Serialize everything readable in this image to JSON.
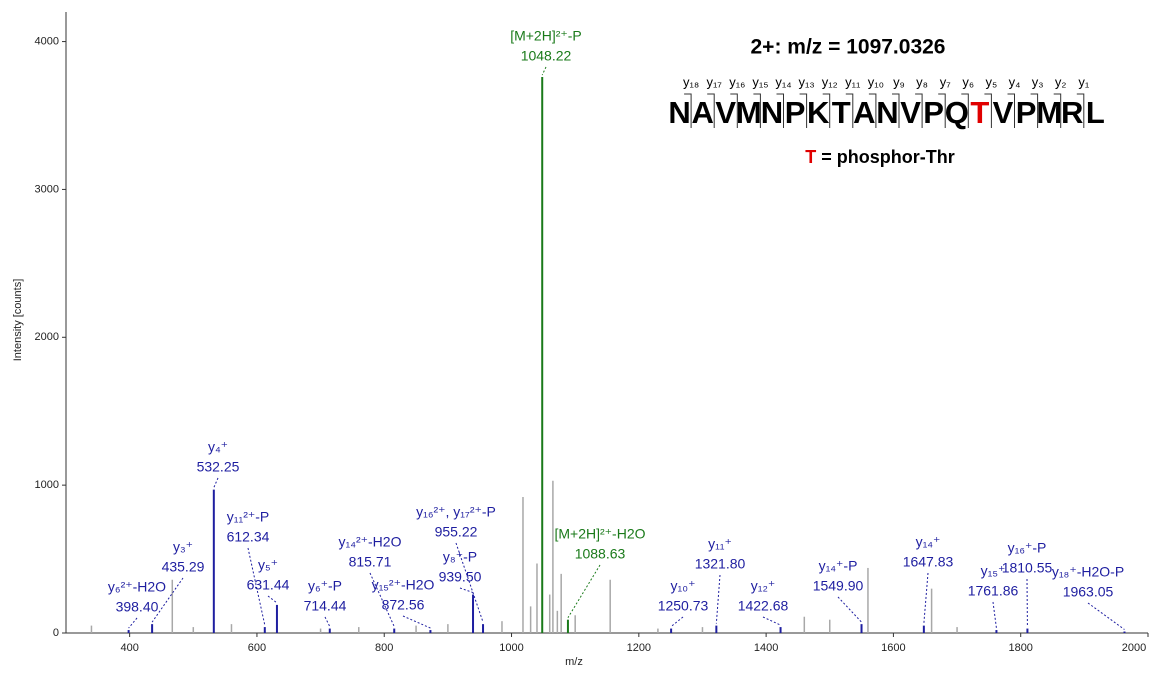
{
  "chart_data": {
    "type": "spectrum",
    "xlabel": "m/z",
    "ylabel": "Intensity [counts]",
    "xlim": [
      300,
      2000
    ],
    "ylim": [
      0,
      4200
    ],
    "xticks": [
      400,
      600,
      800,
      1000,
      1200,
      1400,
      1600,
      1800,
      2000
    ],
    "yticks": [
      0,
      1000,
      2000,
      3000,
      4000
    ],
    "annotation_color": "#1e1ea0",
    "peaks": [
      {
        "annotation": "[M+2H]²⁺-P",
        "x": 1048.22,
        "value": 3760,
        "color": "#1a7a1a"
      },
      {
        "annotation": "y₄⁺",
        "x": 532.25,
        "value": 970,
        "color": "#1e1ea0"
      },
      {
        "annotation": "y₃⁺",
        "x": 435.29,
        "value": 60,
        "color": "#1e1ea0"
      },
      {
        "annotation": "y₆²⁺-H2O",
        "x": 398.4,
        "x_label": "398.40",
        "value": 20,
        "color": "#1e1ea0"
      },
      {
        "annotation": "y₁₁²⁺-P",
        "x": 612.34,
        "value": 40,
        "color": "#1e1ea0"
      },
      {
        "annotation": "y₅⁺",
        "x": 631.44,
        "value": 190,
        "color": "#1e1ea0"
      },
      {
        "annotation": "y₆⁺-P",
        "x": 714.44,
        "value": 30,
        "color": "#1e1ea0"
      },
      {
        "annotation": "y₁₄²⁺-H2O",
        "x": 815.71,
        "value": 30,
        "color": "#1e1ea0"
      },
      {
        "annotation": "y₁₅²⁺-H2O",
        "x": 872.56,
        "value": 20,
        "color": "#1e1ea0"
      },
      {
        "annotation": "y₁₆²⁺, y₁₇²⁺-P",
        "x": 955.22,
        "value": 60,
        "color": "#1e1ea0"
      },
      {
        "annotation": "y₈⁺-P",
        "x": 939.5,
        "x_label": "939.50",
        "value": 260,
        "color": "#1e1ea0"
      },
      {
        "annotation": "[M+2H]²⁺-H2O",
        "x": 1088.63,
        "value": 90,
        "color": "#1a7a1a"
      },
      {
        "annotation": "y₁₀⁺",
        "x": 1250.73,
        "value": 30,
        "color": "#1e1ea0"
      },
      {
        "annotation": "y₁₁⁺",
        "x": 1321.8,
        "x_label": "1321.80",
        "value": 50,
        "color": "#1e1ea0"
      },
      {
        "annotation": "y₁₂⁺",
        "x": 1422.68,
        "value": 40,
        "color": "#1e1ea0"
      },
      {
        "annotation": "y₁₄⁺-P",
        "x": 1549.9,
        "x_label": "1549.90",
        "value": 60,
        "color": "#1e1ea0"
      },
      {
        "annotation": "y₁₄⁺",
        "x": 1647.83,
        "value": 50,
        "color": "#1e1ea0"
      },
      {
        "annotation": "y₁₅⁺",
        "x": 1761.86,
        "value": 20,
        "color": "#1e1ea0"
      },
      {
        "annotation": "y₁₆⁺-P",
        "x": 1810.55,
        "value": 30,
        "color": "#1e1ea0"
      },
      {
        "annotation": "y₁₈⁺-H2O-P",
        "x": 1963.05,
        "value": 10,
        "color": "#1e1ea0"
      }
    ],
    "background_peaks": {
      "color": "#a8a8a8",
      "x": [
        340,
        467,
        500,
        560,
        700,
        760,
        850,
        900,
        985,
        1018,
        1030,
        1040,
        1060,
        1065,
        1072,
        1078,
        1100,
        1155,
        1230,
        1300,
        1460,
        1500,
        1560,
        1660,
        1700
      ],
      "values": [
        50,
        360,
        40,
        60,
        30,
        40,
        50,
        60,
        80,
        920,
        180,
        470,
        260,
        1030,
        150,
        400,
        120,
        360,
        30,
        40,
        110,
        90,
        440,
        300,
        40
      ]
    },
    "inset": {
      "title": "2+: m/z = 1097.0326",
      "sequence": [
        "N",
        "A",
        "V",
        "M",
        "N",
        "P",
        "K",
        "T",
        "A",
        "N",
        "V",
        "P",
        "Q",
        "T",
        "V",
        "P",
        "M",
        "R",
        "L"
      ],
      "fragments": [
        "y₁₈",
        "y₁₇",
        "y₁₆",
        "y₁₅",
        "y₁₄",
        "y₁₃",
        "y₁₂",
        "y₁₁",
        "y₁₀",
        "y₉",
        "y₈",
        "y₇",
        "y₆",
        "y₅",
        "y₄",
        "y₃",
        "y₂",
        "y₁"
      ],
      "highlight_index": 13,
      "highlight_color": "#e00000",
      "note_symbol": "T",
      "note_text": " = phosphor-Thr"
    }
  }
}
